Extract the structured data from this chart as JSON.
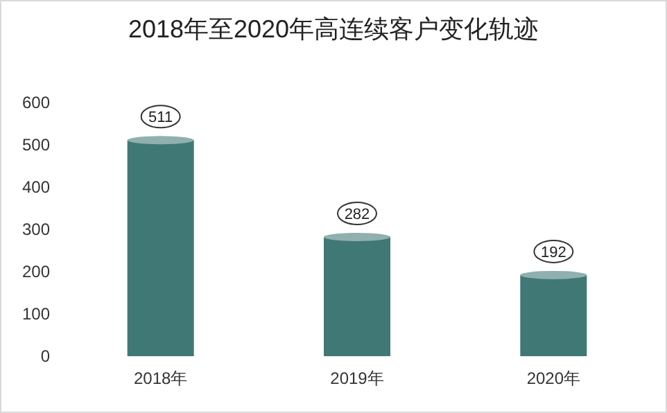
{
  "chart_data": {
    "type": "bar",
    "title": "2018年至2020年高连续客户变化轨迹",
    "categories": [
      "2018年",
      "2019年",
      "2020年"
    ],
    "values": [
      511,
      282,
      192
    ],
    "color": "#407875",
    "ylim": [
      0,
      600
    ],
    "yticks": [
      0,
      100,
      200,
      300,
      400,
      500,
      600
    ],
    "grid": false,
    "data_labels": true
  }
}
